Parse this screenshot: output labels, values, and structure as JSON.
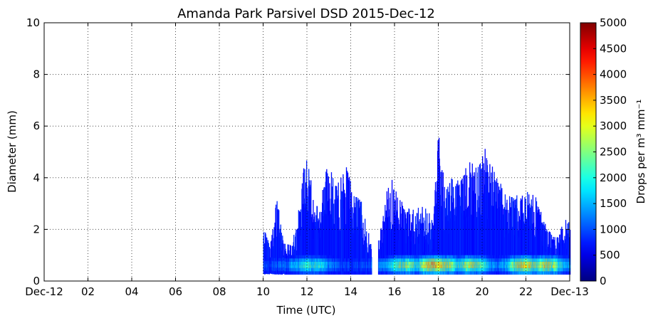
{
  "chart_data": {
    "type": "heatmap",
    "title": "Amanda Park Parsivel DSD 2015-Dec-12",
    "xlabel": "Time (UTC)",
    "ylabel": "Diameter (mm)",
    "colorbar_label": "Drops per m³ mm⁻¹",
    "xlim": [
      0,
      24
    ],
    "ylim": [
      0,
      10
    ],
    "x_ticks": [
      0,
      2,
      4,
      6,
      8,
      10,
      12,
      14,
      16,
      18,
      20,
      22,
      24
    ],
    "x_tick_labels": [
      "Dec-12",
      "02",
      "04",
      "06",
      "08",
      "10",
      "12",
      "14",
      "16",
      "18",
      "20",
      "22",
      "Dec-13"
    ],
    "y_ticks": [
      0,
      2,
      4,
      6,
      8,
      10
    ],
    "y_tick_labels": [
      "0",
      "2",
      "4",
      "6",
      "8",
      "10"
    ],
    "colorbar_ticks": [
      0,
      500,
      1000,
      1500,
      2000,
      2500,
      3000,
      3500,
      4000,
      4500,
      5000
    ],
    "colorbar_tick_labels": [
      "0",
      "500",
      "1000",
      "1500",
      "2000",
      "2500",
      "3000",
      "3500",
      "4000",
      "4500",
      "5000"
    ],
    "clim": [
      0,
      5000
    ],
    "colormap": "jet",
    "grid": true,
    "precip_envelope": [
      {
        "t": 10.0,
        "dmax": 1.8
      },
      {
        "t": 10.3,
        "dmax": 1.2
      },
      {
        "t": 10.6,
        "dmax": 3.0
      },
      {
        "t": 10.9,
        "dmax": 1.5
      },
      {
        "t": 11.2,
        "dmax": 1.2
      },
      {
        "t": 11.5,
        "dmax": 1.8
      },
      {
        "t": 11.8,
        "dmax": 4.0
      },
      {
        "t": 12.0,
        "dmax": 4.6
      },
      {
        "t": 12.3,
        "dmax": 2.5
      },
      {
        "t": 12.6,
        "dmax": 2.8
      },
      {
        "t": 12.9,
        "dmax": 4.0
      },
      {
        "t": 13.2,
        "dmax": 3.5
      },
      {
        "t": 13.5,
        "dmax": 3.5
      },
      {
        "t": 13.8,
        "dmax": 4.0
      },
      {
        "t": 14.1,
        "dmax": 3.0
      },
      {
        "t": 14.4,
        "dmax": 3.0
      },
      {
        "t": 14.7,
        "dmax": 2.0
      },
      {
        "t": 15.0,
        "dmax": 0.9
      },
      {
        "t": 15.3,
        "dmax": 1.5
      },
      {
        "t": 15.6,
        "dmax": 3.0
      },
      {
        "t": 15.9,
        "dmax": 3.5
      },
      {
        "t": 16.2,
        "dmax": 2.8
      },
      {
        "t": 16.5,
        "dmax": 2.5
      },
      {
        "t": 16.8,
        "dmax": 2.5
      },
      {
        "t": 17.1,
        "dmax": 2.5
      },
      {
        "t": 17.4,
        "dmax": 2.5
      },
      {
        "t": 17.7,
        "dmax": 2.2
      },
      {
        "t": 18.0,
        "dmax": 5.1
      },
      {
        "t": 18.3,
        "dmax": 3.0
      },
      {
        "t": 18.6,
        "dmax": 3.5
      },
      {
        "t": 18.9,
        "dmax": 3.5
      },
      {
        "t": 19.2,
        "dmax": 4.0
      },
      {
        "t": 19.5,
        "dmax": 4.0
      },
      {
        "t": 19.8,
        "dmax": 4.0
      },
      {
        "t": 20.1,
        "dmax": 4.5
      },
      {
        "t": 20.4,
        "dmax": 4.0
      },
      {
        "t": 20.7,
        "dmax": 3.5
      },
      {
        "t": 21.0,
        "dmax": 3.0
      },
      {
        "t": 21.3,
        "dmax": 3.0
      },
      {
        "t": 21.6,
        "dmax": 3.0
      },
      {
        "t": 21.9,
        "dmax": 3.0
      },
      {
        "t": 22.2,
        "dmax": 3.0
      },
      {
        "t": 22.5,
        "dmax": 2.8
      },
      {
        "t": 22.8,
        "dmax": 2.0
      },
      {
        "t": 23.1,
        "dmax": 1.8
      },
      {
        "t": 23.4,
        "dmax": 1.5
      },
      {
        "t": 23.7,
        "dmax": 2.0
      },
      {
        "t": 24.0,
        "dmax": 2.2
      }
    ],
    "precip_gaps": [
      [
        14.95,
        15.25
      ]
    ],
    "peak_concentration": [
      {
        "t": 12.2,
        "d": 0.55,
        "value": 1500
      },
      {
        "t": 16.5,
        "d": 0.5,
        "value": 2000
      },
      {
        "t": 17.8,
        "d": 0.55,
        "value": 3000
      },
      {
        "t": 18.2,
        "d": 0.5,
        "value": 2500
      },
      {
        "t": 19.5,
        "d": 0.5,
        "value": 2200
      },
      {
        "t": 21.9,
        "d": 0.6,
        "value": 2600
      },
      {
        "t": 22.9,
        "d": 0.55,
        "value": 2400
      }
    ]
  }
}
